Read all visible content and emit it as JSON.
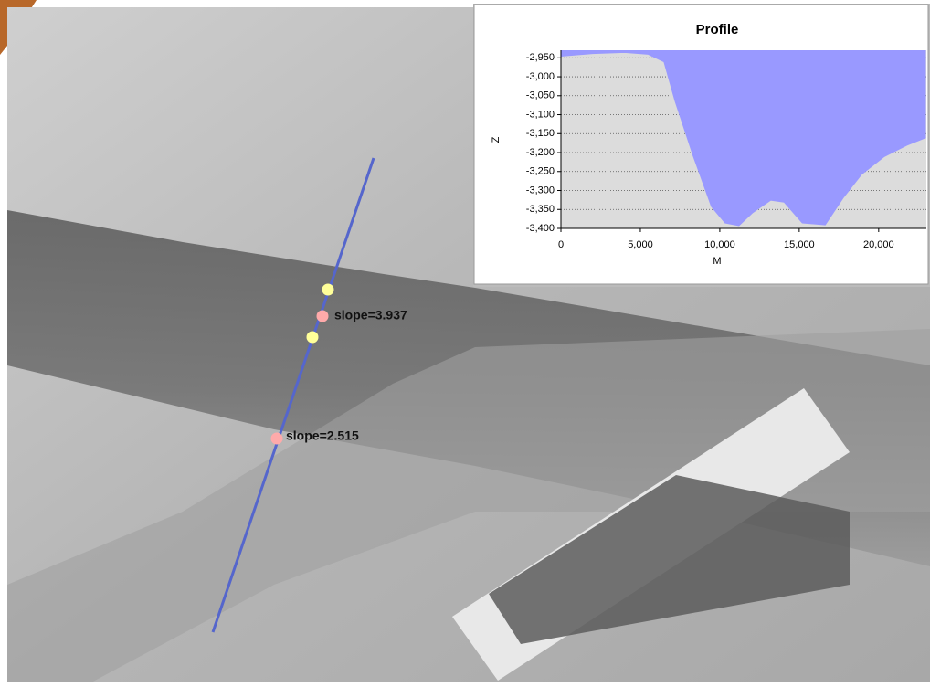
{
  "chart_data": {
    "type": "area",
    "title": "Profile",
    "x_label": "M",
    "y_label": "Z",
    "x": [
      0,
      2000,
      4000,
      5500,
      6500,
      7200,
      8343,
      9486,
      10343,
      11200,
      12057,
      13200,
      14057,
      15200,
      16629,
      17771,
      18914,
      20343,
      21771,
      22971
    ],
    "values": [
      -2945,
      -2938,
      -2935,
      -2940,
      -2960,
      -3064,
      -3209,
      -3342,
      -3385,
      -3392,
      -3358,
      -3325,
      -3330,
      -3385,
      -3390,
      -3318,
      -3257,
      -3210,
      -3180,
      -3160
    ],
    "color": "#9999ff",
    "xlim": [
      0,
      23000
    ],
    "xticks": [
      0,
      {
        "value": 5000,
        "label": "5,000"
      },
      {
        "value": 10000,
        "label": "10,000"
      },
      {
        "value": 15000,
        "label": "15,000"
      },
      {
        "value": 20000,
        "label": "20,000"
      }
    ],
    "ylim": [
      -3400,
      -2930
    ],
    "yticks": [
      {
        "value": -2950,
        "label": "-2,950"
      },
      {
        "value": -3000,
        "label": "-3,000"
      },
      {
        "value": -3050,
        "label": "-3,050"
      },
      {
        "value": -3100,
        "label": "-3,100"
      },
      {
        "value": -3150,
        "label": "-3,150"
      },
      {
        "value": -3200,
        "label": "-3,200"
      },
      {
        "value": -3250,
        "label": "-3,250"
      },
      {
        "value": -3300,
        "label": "-3,300"
      },
      {
        "value": -3350,
        "label": "-3,350"
      },
      {
        "value": -3400,
        "label": "-3,400"
      }
    ],
    "grid": true
  },
  "map": {
    "labels": [
      "slope=3.937",
      "slope=2.515"
    ]
  }
}
